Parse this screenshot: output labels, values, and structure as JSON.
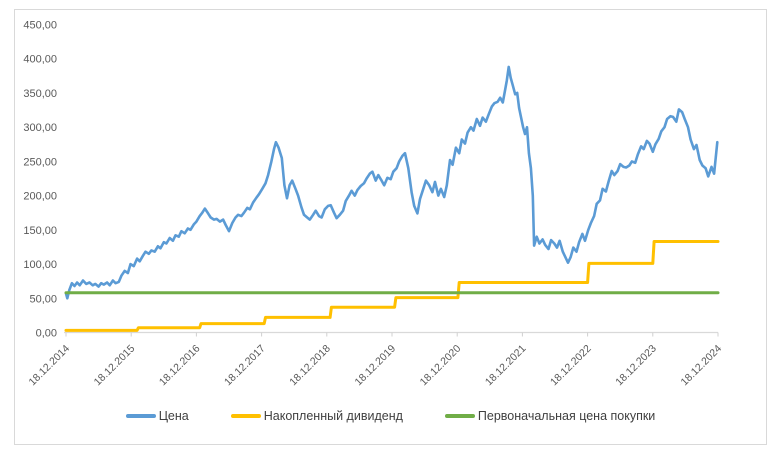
{
  "figure": {
    "background": "#FFFFFF",
    "frame_border_color": "#D9D9D9",
    "axis_text_color": "#595959",
    "legend_text_color": "#404040"
  },
  "chart_data": {
    "type": "line",
    "title": "",
    "grid": false,
    "legend_position": "bottom",
    "x_axis": {
      "unit": "years since 18.12.2014",
      "range": [
        0,
        10
      ],
      "tick_labels": [
        "18.12.2014",
        "18.12.2015",
        "18.12.2016",
        "18.12.2017",
        "18.12.2018",
        "18.12.2019",
        "18.12.2020",
        "18.12.2021",
        "18.12.2022",
        "18.12.2023",
        "18.12.2024"
      ]
    },
    "y_axis": {
      "min": 0,
      "max": 450,
      "step": 50,
      "tick_labels": [
        "0,00",
        "50,00",
        "100,00",
        "150,00",
        "200,00",
        "250,00",
        "300,00",
        "350,00",
        "400,00",
        "450,00"
      ]
    },
    "series": [
      {
        "name": "Цена",
        "color": "#5B9BD5",
        "stroke_width": 2.6,
        "points": [
          [
            0,
            57
          ],
          [
            0.02,
            50
          ],
          [
            0.05,
            62
          ],
          [
            0.09,
            72
          ],
          [
            0.13,
            68
          ],
          [
            0.17,
            73
          ],
          [
            0.21,
            69
          ],
          [
            0.26,
            76
          ],
          [
            0.31,
            71
          ],
          [
            0.36,
            73
          ],
          [
            0.41,
            69
          ],
          [
            0.45,
            71
          ],
          [
            0.5,
            67
          ],
          [
            0.54,
            72
          ],
          [
            0.58,
            70
          ],
          [
            0.63,
            73
          ],
          [
            0.67,
            69
          ],
          [
            0.72,
            76
          ],
          [
            0.76,
            72
          ],
          [
            0.81,
            74
          ],
          [
            0.85,
            83
          ],
          [
            0.9,
            90
          ],
          [
            0.95,
            87
          ],
          [
            0.99,
            100
          ],
          [
            1.04,
            97
          ],
          [
            1.09,
            108
          ],
          [
            1.13,
            104
          ],
          [
            1.18,
            112
          ],
          [
            1.22,
            118
          ],
          [
            1.27,
            115
          ],
          [
            1.31,
            120
          ],
          [
            1.36,
            118
          ],
          [
            1.41,
            126
          ],
          [
            1.45,
            123
          ],
          [
            1.5,
            132
          ],
          [
            1.54,
            130
          ],
          [
            1.59,
            138
          ],
          [
            1.64,
            134
          ],
          [
            1.68,
            142
          ],
          [
            1.73,
            140
          ],
          [
            1.77,
            148
          ],
          [
            1.82,
            145
          ],
          [
            1.87,
            152
          ],
          [
            1.91,
            150
          ],
          [
            1.96,
            158
          ],
          [
            2,
            162
          ],
          [
            2.05,
            170
          ],
          [
            2.09,
            175
          ],
          [
            2.13,
            181
          ],
          [
            2.18,
            174
          ],
          [
            2.22,
            168
          ],
          [
            2.27,
            165
          ],
          [
            2.31,
            166
          ],
          [
            2.36,
            162
          ],
          [
            2.41,
            165
          ],
          [
            2.45,
            157
          ],
          [
            2.5,
            148
          ],
          [
            2.55,
            160
          ],
          [
            2.6,
            168
          ],
          [
            2.64,
            172
          ],
          [
            2.69,
            170
          ],
          [
            2.73,
            175
          ],
          [
            2.78,
            182
          ],
          [
            2.82,
            180
          ],
          [
            2.87,
            190
          ],
          [
            2.92,
            197
          ],
          [
            2.96,
            202
          ],
          [
            3.01,
            210
          ],
          [
            3.06,
            218
          ],
          [
            3.1,
            230
          ],
          [
            3.15,
            250
          ],
          [
            3.19,
            268
          ],
          [
            3.22,
            278
          ],
          [
            3.26,
            270
          ],
          [
            3.31,
            255
          ],
          [
            3.35,
            215
          ],
          [
            3.39,
            196
          ],
          [
            3.43,
            215
          ],
          [
            3.47,
            222
          ],
          [
            3.52,
            210
          ],
          [
            3.56,
            200
          ],
          [
            3.61,
            183
          ],
          [
            3.65,
            172
          ],
          [
            3.7,
            168
          ],
          [
            3.74,
            165
          ],
          [
            3.79,
            172
          ],
          [
            3.83,
            178
          ],
          [
            3.88,
            170
          ],
          [
            3.92,
            168
          ],
          [
            3.97,
            180
          ],
          [
            4.02,
            185
          ],
          [
            4.06,
            186
          ],
          [
            4.11,
            175
          ],
          [
            4.15,
            167
          ],
          [
            4.2,
            172
          ],
          [
            4.25,
            178
          ],
          [
            4.29,
            192
          ],
          [
            4.34,
            200
          ],
          [
            4.38,
            207
          ],
          [
            4.43,
            200
          ],
          [
            4.47,
            208
          ],
          [
            4.52,
            214
          ],
          [
            4.57,
            218
          ],
          [
            4.61,
            225
          ],
          [
            4.66,
            232
          ],
          [
            4.7,
            235
          ],
          [
            4.75,
            222
          ],
          [
            4.79,
            230
          ],
          [
            4.84,
            222
          ],
          [
            4.88,
            215
          ],
          [
            4.93,
            226
          ],
          [
            4.98,
            224
          ],
          [
            5.02,
            235
          ],
          [
            5.07,
            240
          ],
          [
            5.11,
            250
          ],
          [
            5.16,
            258
          ],
          [
            5.2,
            262
          ],
          [
            5.25,
            240
          ],
          [
            5.3,
            205
          ],
          [
            5.34,
            185
          ],
          [
            5.39,
            174
          ],
          [
            5.43,
            195
          ],
          [
            5.48,
            210
          ],
          [
            5.52,
            222
          ],
          [
            5.57,
            215
          ],
          [
            5.62,
            205
          ],
          [
            5.66,
            220
          ],
          [
            5.71,
            200
          ],
          [
            5.75,
            210
          ],
          [
            5.8,
            198
          ],
          [
            5.84,
            215
          ],
          [
            5.89,
            252
          ],
          [
            5.93,
            245
          ],
          [
            5.98,
            270
          ],
          [
            6.03,
            262
          ],
          [
            6.07,
            282
          ],
          [
            6.12,
            276
          ],
          [
            6.16,
            292
          ],
          [
            6.21,
            300
          ],
          [
            6.25,
            295
          ],
          [
            6.3,
            312
          ],
          [
            6.35,
            302
          ],
          [
            6.39,
            314
          ],
          [
            6.44,
            308
          ],
          [
            6.48,
            318
          ],
          [
            6.53,
            330
          ],
          [
            6.57,
            335
          ],
          [
            6.62,
            337
          ],
          [
            6.66,
            343
          ],
          [
            6.7,
            336
          ],
          [
            6.73,
            352
          ],
          [
            6.76,
            368
          ],
          [
            6.79,
            388
          ],
          [
            6.82,
            372
          ],
          [
            6.85,
            362
          ],
          [
            6.89,
            348
          ],
          [
            6.92,
            350
          ],
          [
            6.95,
            328
          ],
          [
            6.98,
            314
          ],
          [
            7.01,
            300
          ],
          [
            7.04,
            290
          ],
          [
            7.07,
            300
          ],
          [
            7.1,
            262
          ],
          [
            7.13,
            240
          ],
          [
            7.16,
            200
          ],
          [
            7.18,
            127
          ],
          [
            7.22,
            140
          ],
          [
            7.26,
            130
          ],
          [
            7.31,
            136
          ],
          [
            7.35,
            128
          ],
          [
            7.4,
            122
          ],
          [
            7.44,
            135
          ],
          [
            7.49,
            130
          ],
          [
            7.53,
            124
          ],
          [
            7.57,
            134
          ],
          [
            7.62,
            118
          ],
          [
            7.66,
            110
          ],
          [
            7.7,
            102
          ],
          [
            7.74,
            110
          ],
          [
            7.78,
            124
          ],
          [
            7.83,
            118
          ],
          [
            7.87,
            132
          ],
          [
            7.92,
            144
          ],
          [
            7.96,
            134
          ],
          [
            8.01,
            150
          ],
          [
            8.05,
            160
          ],
          [
            8.1,
            170
          ],
          [
            8.14,
            188
          ],
          [
            8.19,
            193
          ],
          [
            8.23,
            210
          ],
          [
            8.28,
            206
          ],
          [
            8.32,
            220
          ],
          [
            8.37,
            236
          ],
          [
            8.41,
            230
          ],
          [
            8.46,
            236
          ],
          [
            8.5,
            246
          ],
          [
            8.55,
            242
          ],
          [
            8.59,
            241
          ],
          [
            8.64,
            244
          ],
          [
            8.68,
            250
          ],
          [
            8.73,
            248
          ],
          [
            8.77,
            260
          ],
          [
            8.82,
            272
          ],
          [
            8.86,
            268
          ],
          [
            8.91,
            280
          ],
          [
            8.95,
            276
          ],
          [
            9,
            264
          ],
          [
            9.04,
            275
          ],
          [
            9.09,
            283
          ],
          [
            9.13,
            294
          ],
          [
            9.18,
            300
          ],
          [
            9.22,
            312
          ],
          [
            9.27,
            316
          ],
          [
            9.31,
            315
          ],
          [
            9.36,
            308
          ],
          [
            9.4,
            326
          ],
          [
            9.45,
            322
          ],
          [
            9.49,
            312
          ],
          [
            9.54,
            300
          ],
          [
            9.58,
            282
          ],
          [
            9.63,
            268
          ],
          [
            9.67,
            274
          ],
          [
            9.72,
            252
          ],
          [
            9.76,
            244
          ],
          [
            9.81,
            240
          ],
          [
            9.85,
            228
          ],
          [
            9.9,
            242
          ],
          [
            9.94,
            232
          ],
          [
            9.99,
            278
          ]
        ]
      },
      {
        "name": "Накопленный дивиденд",
        "color": "#FFC000",
        "stroke_width": 3,
        "points": [
          [
            0,
            3
          ],
          [
            1.09,
            3
          ],
          [
            1.11,
            7
          ],
          [
            2.05,
            7
          ],
          [
            2.07,
            13
          ],
          [
            3.04,
            13
          ],
          [
            3.06,
            22
          ],
          [
            4.05,
            22
          ],
          [
            4.07,
            37
          ],
          [
            5.04,
            37
          ],
          [
            5.06,
            51
          ],
          [
            6.01,
            51
          ],
          [
            6.03,
            73
          ],
          [
            8,
            73
          ],
          [
            8.02,
            101
          ],
          [
            9,
            101
          ],
          [
            9.02,
            133
          ],
          [
            10,
            133
          ]
        ]
      },
      {
        "name": "Первоначальная цена покупки",
        "color": "#70AD47",
        "stroke_width": 3,
        "points": [
          [
            0,
            58
          ],
          [
            10,
            58
          ]
        ]
      }
    ]
  }
}
